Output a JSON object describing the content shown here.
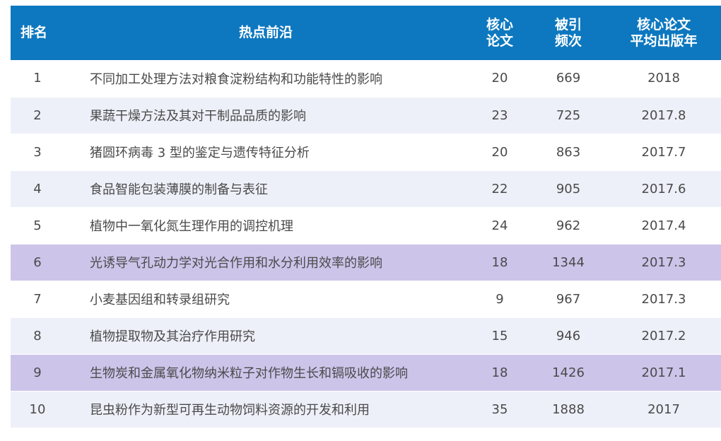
{
  "headers": {
    "rank": "排名",
    "topic": "热点前沿",
    "core_line1": "核心",
    "core_line2": "论文",
    "cite_line1": "被引",
    "cite_line2": "频次",
    "year_line1": "核心论文",
    "year_line2": "平均出版年"
  },
  "rows": [
    {
      "rank": "1",
      "topic": "不同加工处理方法对粮食淀粉结构和功能特性的影响",
      "core": "20",
      "cite": "669",
      "year": "2018",
      "highlight": false
    },
    {
      "rank": "2",
      "topic": "果蔬干燥方法及其对干制品品质的影响",
      "core": "23",
      "cite": "725",
      "year": "2017.8",
      "highlight": false
    },
    {
      "rank": "3",
      "topic": "猪圆环病毒 3 型的鉴定与遗传特征分析",
      "core": "20",
      "cite": "863",
      "year": "2017.7",
      "highlight": false
    },
    {
      "rank": "4",
      "topic": "食品智能包装薄膜的制备与表征",
      "core": "22",
      "cite": "905",
      "year": "2017.6",
      "highlight": false
    },
    {
      "rank": "5",
      "topic": "植物中一氧化氮生理作用的调控机理",
      "core": "24",
      "cite": "962",
      "year": "2017.4",
      "highlight": false
    },
    {
      "rank": "6",
      "topic": "光诱导气孔动力学对光合作用和水分利用效率的影响",
      "core": "18",
      "cite": "1344",
      "year": "2017.3",
      "highlight": true
    },
    {
      "rank": "7",
      "topic": "小麦基因组和转录组研究",
      "core": "9",
      "cite": "967",
      "year": "2017.3",
      "highlight": false
    },
    {
      "rank": "8",
      "topic": "植物提取物及其治疗作用研究",
      "core": "15",
      "cite": "946",
      "year": "2017.2",
      "highlight": false
    },
    {
      "rank": "9",
      "topic": "生物炭和金属氧化物纳米粒子对作物生长和镉吸收的影响",
      "core": "18",
      "cite": "1426",
      "year": "2017.1",
      "highlight": true
    },
    {
      "rank": "10",
      "topic": "昆虫粉作为新型可再生动物饲料资源的开发和利用",
      "core": "35",
      "cite": "1888",
      "year": "2017",
      "highlight": false
    }
  ],
  "colors": {
    "header_bg": "#0d78bf",
    "row_alt_bg": "#eef0f9",
    "highlight_bg": "#cdc4ea",
    "text": "#4a4a4a"
  }
}
